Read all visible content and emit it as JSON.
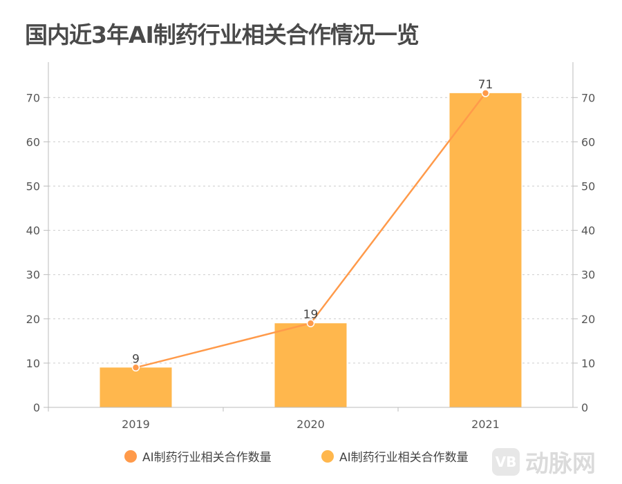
{
  "chart_data": {
    "type": "bar+line",
    "title": "国内近3年AI制药行业相关合作情况一览",
    "categories": [
      "2019",
      "2020",
      "2021"
    ],
    "series": [
      {
        "name": "AI制药行业相关合作数量",
        "type": "line",
        "values": [
          9,
          19,
          71
        ],
        "color": "#FF9A4A"
      },
      {
        "name": "AI制药行业相关合作数量",
        "type": "bar",
        "values": [
          9,
          19,
          71
        ],
        "color": "#FFB74D"
      }
    ],
    "data_labels": [
      "9",
      "19",
      "71"
    ],
    "ylim": [
      0,
      78
    ],
    "yticks": [
      0,
      10,
      20,
      30,
      40,
      50,
      60,
      70
    ],
    "right_yticks": [
      0,
      10,
      20,
      30,
      40,
      50,
      60,
      70
    ],
    "grid": "horizontal dashed",
    "legend": "bottom"
  },
  "watermark": {
    "logo": "VB",
    "text": "动脉网"
  }
}
